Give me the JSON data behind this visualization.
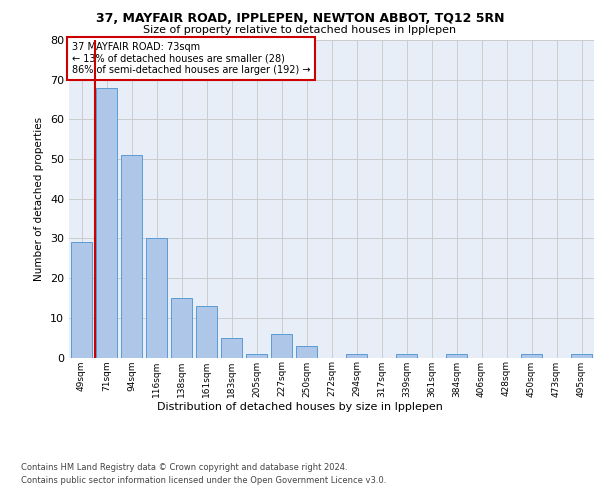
{
  "title1": "37, MAYFAIR ROAD, IPPLEPEN, NEWTON ABBOT, TQ12 5RN",
  "title2": "Size of property relative to detached houses in Ipplepen",
  "xlabel": "Distribution of detached houses by size in Ipplepen",
  "ylabel": "Number of detached properties",
  "annotation_line1": "37 MAYFAIR ROAD: 73sqm",
  "annotation_line2": "← 13% of detached houses are smaller (28)",
  "annotation_line3": "86% of semi-detached houses are larger (192) →",
  "footnote1": "Contains HM Land Registry data © Crown copyright and database right 2024.",
  "footnote2": "Contains public sector information licensed under the Open Government Licence v3.0.",
  "bar_labels": [
    "49sqm",
    "71sqm",
    "94sqm",
    "116sqm",
    "138sqm",
    "161sqm",
    "183sqm",
    "205sqm",
    "227sqm",
    "250sqm",
    "272sqm",
    "294sqm",
    "317sqm",
    "339sqm",
    "361sqm",
    "384sqm",
    "406sqm",
    "428sqm",
    "450sqm",
    "473sqm",
    "495sqm"
  ],
  "bar_values": [
    29,
    68,
    51,
    30,
    15,
    13,
    5,
    1,
    6,
    3,
    0,
    1,
    0,
    1,
    0,
    1,
    0,
    0,
    1,
    0,
    1
  ],
  "bar_color": "#aec6e8",
  "bar_edge_color": "#5b9bd5",
  "vline_color": "#cc0000",
  "ylim": [
    0,
    80
  ],
  "yticks": [
    0,
    10,
    20,
    30,
    40,
    50,
    60,
    70,
    80
  ],
  "annotation_box_color": "#cc0000",
  "grid_color": "#cccccc",
  "bg_color": "#e8eef8"
}
